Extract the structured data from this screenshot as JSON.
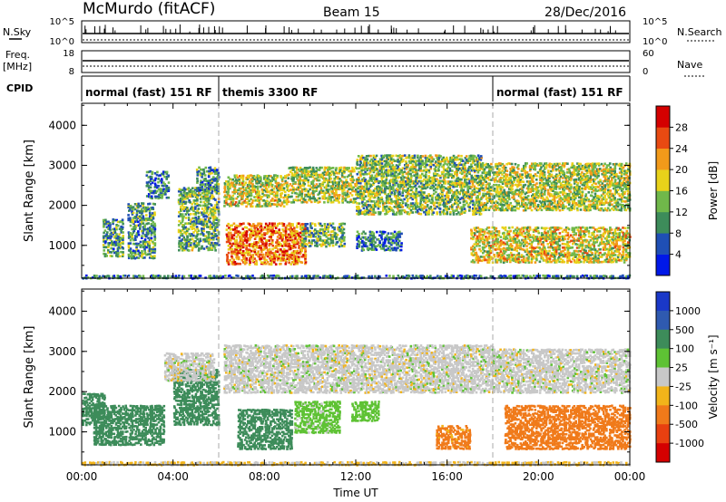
{
  "header": {
    "title": "McMurdo (fitACF)",
    "beam": "Beam 15",
    "date": "28/Dec/2016"
  },
  "top_panels": {
    "nsky_label": "N.Sky",
    "nsearch_label": "N.Search",
    "freq_label": "Freq.",
    "freq_unit": "[MHz]",
    "nave_label": "Nave",
    "cpid_label": "CPID",
    "left_ticks": [
      "10^5",
      "10^0",
      "18",
      "8"
    ],
    "right_ticks": [
      "10^5",
      "10^0",
      "60",
      "0"
    ],
    "cpid_segments": [
      {
        "label": "normal (fast) 151 RF",
        "start_hour": 0,
        "end_hour": 6
      },
      {
        "label": "themis 3300 RF",
        "start_hour": 6,
        "end_hour": 18
      },
      {
        "label": "normal (fast) 151 RF",
        "start_hour": 18,
        "end_hour": 24
      }
    ]
  },
  "chart_data": [
    {
      "type": "heatmap",
      "name": "power",
      "ylabel": "Slant Range [km]",
      "ylim": [
        180,
        4550
      ],
      "yticks": [
        1000,
        2000,
        3000,
        4000
      ],
      "xlim": [
        0,
        24
      ],
      "colorbar_label": "Power [dB]",
      "colorbar_ticks": [
        "4",
        "8",
        "12",
        "16",
        "20",
        "24",
        "28"
      ],
      "colorbar_range": [
        0,
        30
      ],
      "colors": [
        "#0018e8",
        "#1f4fb5",
        "#3d8c5a",
        "#70b84a",
        "#e8d21a",
        "#f29a1a",
        "#e84a12",
        "#d40000"
      ],
      "regions": [
        {
          "t0": 0.9,
          "t1": 1.8,
          "r0": 750,
          "r1": 1700,
          "value": 10
        },
        {
          "t0": 2.0,
          "t1": 3.2,
          "r0": 700,
          "r1": 2100,
          "value": 10
        },
        {
          "t0": 2.8,
          "t1": 3.8,
          "r0": 2200,
          "r1": 2900,
          "value": 8
        },
        {
          "t0": 4.2,
          "t1": 6.0,
          "r0": 900,
          "r1": 2500,
          "value": 12
        },
        {
          "t0": 5.0,
          "t1": 6.0,
          "r0": 2400,
          "r1": 3000,
          "value": 9
        },
        {
          "t0": 6.2,
          "t1": 9.0,
          "r0": 2000,
          "r1": 2800,
          "value": 16
        },
        {
          "t0": 6.3,
          "t1": 9.8,
          "r0": 550,
          "r1": 1600,
          "value": 22
        },
        {
          "t0": 9.0,
          "t1": 12.0,
          "r0": 2100,
          "r1": 3000,
          "value": 15
        },
        {
          "t0": 9.6,
          "t1": 11.5,
          "r0": 1000,
          "r1": 1600,
          "value": 12
        },
        {
          "t0": 12.0,
          "t1": 17.5,
          "r0": 1800,
          "r1": 3300,
          "value": 13
        },
        {
          "t0": 12.0,
          "t1": 14.0,
          "r0": 900,
          "r1": 1400,
          "value": 8
        },
        {
          "t0": 17.5,
          "t1": 24.0,
          "r0": 1900,
          "r1": 3100,
          "value": 15
        },
        {
          "t0": 17.0,
          "t1": 24.0,
          "r0": 600,
          "r1": 1500,
          "value": 17
        },
        {
          "t0": 0.0,
          "t1": 24.0,
          "r0": 200,
          "r1": 300,
          "value": 8
        }
      ]
    },
    {
      "type": "heatmap",
      "name": "velocity",
      "ylabel": "Slant Range [km]",
      "ylim": [
        180,
        4550
      ],
      "yticks": [
        1000,
        2000,
        3000,
        4000
      ],
      "xlim": [
        0,
        24
      ],
      "xlabel": "Time UT",
      "xticks": [
        "00:00",
        "04:00",
        "08:00",
        "12:00",
        "16:00",
        "20:00",
        "00:00"
      ],
      "colorbar_label": "Velocity [m s⁻¹]",
      "colorbar_ticks": [
        "1000",
        "500",
        "100",
        "25",
        "-25",
        "-100",
        "-500",
        "-1000"
      ],
      "colors": [
        "#1a38c8",
        "#2f5ab0",
        "#3d8c5a",
        "#5ec234",
        "#c8c8c8",
        "#f2b41a",
        "#f07a1a",
        "#e84010",
        "#d40000"
      ],
      "regions": [
        {
          "t0": 0.0,
          "t1": 1.0,
          "r0": 1200,
          "r1": 2000,
          "value": 300
        },
        {
          "t0": 0.5,
          "t1": 3.6,
          "r0": 700,
          "r1": 1700,
          "value": 300
        },
        {
          "t0": 4.0,
          "t1": 6.0,
          "r0": 1200,
          "r1": 2600,
          "value": 200
        },
        {
          "t0": 3.6,
          "t1": 5.8,
          "r0": 2300,
          "r1": 3000,
          "value": 0
        },
        {
          "t0": 6.8,
          "t1": 9.2,
          "r0": 600,
          "r1": 1600,
          "value": 300
        },
        {
          "t0": 9.3,
          "t1": 11.3,
          "r0": 1000,
          "r1": 1800,
          "value": 50
        },
        {
          "t0": 6.2,
          "t1": 18.0,
          "r0": 2000,
          "r1": 3200,
          "value": 0
        },
        {
          "t0": 11.8,
          "t1": 13.0,
          "r0": 1300,
          "r1": 1800,
          "value": 60
        },
        {
          "t0": 15.5,
          "t1": 17.0,
          "r0": 600,
          "r1": 1200,
          "value": -150
        },
        {
          "t0": 18.5,
          "t1": 24.0,
          "r0": 600,
          "r1": 1700,
          "value": -300
        },
        {
          "t0": 18.0,
          "t1": 24.0,
          "r0": 2000,
          "r1": 3100,
          "value": 0
        },
        {
          "t0": 0.0,
          "t1": 24.0,
          "r0": 200,
          "r1": 300,
          "value": -30
        }
      ]
    }
  ]
}
